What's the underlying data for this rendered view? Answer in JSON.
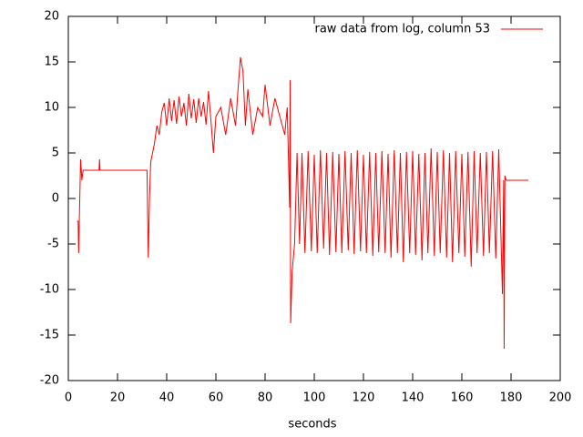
{
  "chart_data": {
    "type": "line",
    "xlabel": "seconds",
    "x": [
      3.5,
      4,
      4.2,
      4.5,
      5,
      5.5,
      6,
      12.5,
      12.7,
      12.9,
      32,
      32.5,
      33,
      33.5,
      35,
      36,
      37,
      38,
      39,
      40,
      41,
      42,
      43,
      44,
      45,
      46,
      47,
      48,
      49,
      50,
      51,
      52,
      53,
      54,
      55,
      56,
      57,
      58,
      59,
      60,
      62,
      64,
      66,
      68,
      69,
      70,
      71,
      72,
      73,
      75,
      77,
      79,
      80,
      82,
      84,
      86,
      88,
      89,
      90,
      90.2,
      90.4,
      91,
      92,
      93,
      94,
      95,
      96.2,
      97.5,
      98.8,
      100,
      101.2,
      102.5,
      103.8,
      105,
      106.2,
      107.5,
      108.8,
      110,
      111.2,
      112.5,
      113.8,
      115,
      116.2,
      117.5,
      118.8,
      120,
      121.2,
      122.5,
      123.8,
      125,
      126.2,
      127.5,
      128.8,
      130,
      131.2,
      132.5,
      133.8,
      135,
      136.2,
      137.5,
      138.8,
      140,
      141.2,
      142.5,
      143.8,
      145,
      146.2,
      147.5,
      148.8,
      150,
      151.2,
      152.5,
      153.8,
      155,
      156.2,
      157.5,
      158.8,
      160,
      161.2,
      162.5,
      163.8,
      165,
      166.2,
      167.5,
      168.8,
      170,
      171.2,
      172.5,
      173.8,
      175,
      176.5,
      177,
      177.2,
      177.5,
      178,
      187
    ],
    "series": [
      {
        "name": "raw data from log, column 53",
        "color": "#ff0000",
        "values": [
          -2.5,
          -2.5,
          -6,
          -2,
          4.3,
          2,
          3.1,
          3.1,
          4.3,
          3.1,
          3.1,
          -6.5,
          0,
          4,
          6,
          8,
          7,
          9.5,
          10.5,
          8,
          11,
          8.5,
          10.8,
          8.2,
          11.2,
          9,
          10.5,
          8,
          11.5,
          8.8,
          10.9,
          8.3,
          11,
          9,
          10.6,
          8.1,
          11.8,
          8.5,
          5,
          9,
          10,
          7,
          11,
          8,
          12,
          15.5,
          14,
          8,
          12,
          7,
          10,
          9,
          12.5,
          8,
          11,
          9,
          7,
          10,
          -1,
          13,
          -13.7,
          -8,
          -5,
          5,
          -5,
          5,
          -6,
          5.2,
          -5.8,
          4.8,
          -6,
          5.3,
          -5.5,
          5,
          -6.2,
          5.1,
          -5.9,
          4.9,
          -6,
          5.2,
          -5.7,
          5,
          -6.1,
          5.3,
          -5.8,
          4.8,
          -6,
          5.1,
          -6.3,
          5,
          -5.9,
          5.2,
          -6,
          4.9,
          -6.5,
          5.3,
          -6,
          5,
          -7,
          5.1,
          -6,
          5.2,
          -6.2,
          4.9,
          -6.8,
          5,
          -6,
          5.5,
          -6.3,
          5.1,
          -6,
          5.3,
          -6.5,
          5,
          -7,
          5.2,
          -6,
          4.9,
          -6.4,
          5.1,
          -7.5,
          5.2,
          -6,
          5,
          -6.3,
          5.1,
          -6,
          5.2,
          -6.6,
          5.4,
          -10.5,
          2,
          -16.5,
          2.5,
          2,
          2
        ]
      }
    ],
    "xlim": [
      0,
      200
    ],
    "xticks": [
      0,
      20,
      40,
      60,
      80,
      100,
      120,
      140,
      160,
      180,
      200
    ],
    "ylim": [
      -20,
      20
    ],
    "yticks": [
      -20,
      -15,
      -10,
      -5,
      0,
      5,
      10,
      15,
      20
    ],
    "legend": "top-right"
  }
}
